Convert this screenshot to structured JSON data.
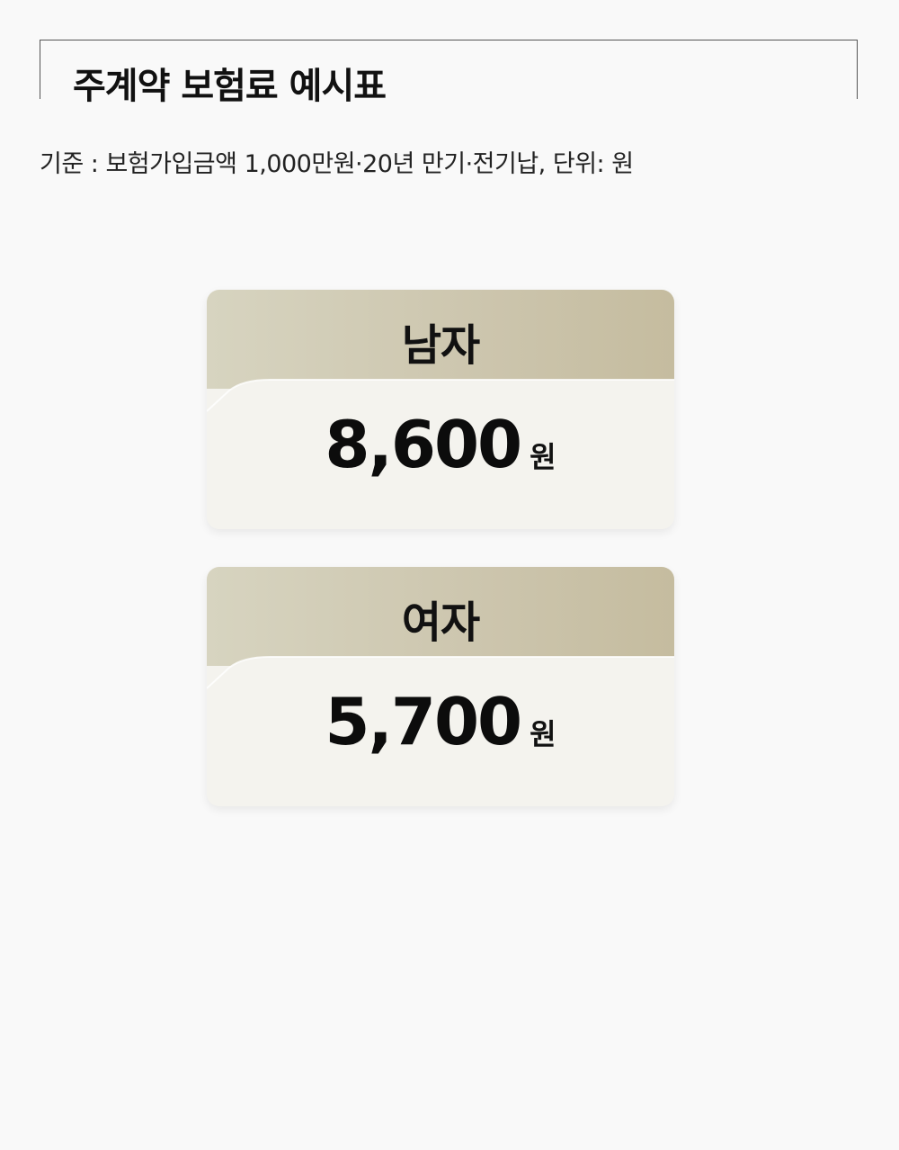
{
  "header": {
    "title": "주계약 보험료 예시표"
  },
  "basis_text": "기준 : 보험가입금액 1,000만원·20년 만기·전기납, 단위: 원",
  "cards": [
    {
      "label": "남자",
      "value": "8,600",
      "unit": "원"
    },
    {
      "label": "여자",
      "value": "5,700",
      "unit": "원"
    }
  ],
  "colors": {
    "background": "#f9f9f9",
    "card_header_gradient_start": "#d7d4c0",
    "card_header_gradient_end": "#c5bc9f",
    "card_body": "#f4f3ee",
    "text": "#111111"
  }
}
